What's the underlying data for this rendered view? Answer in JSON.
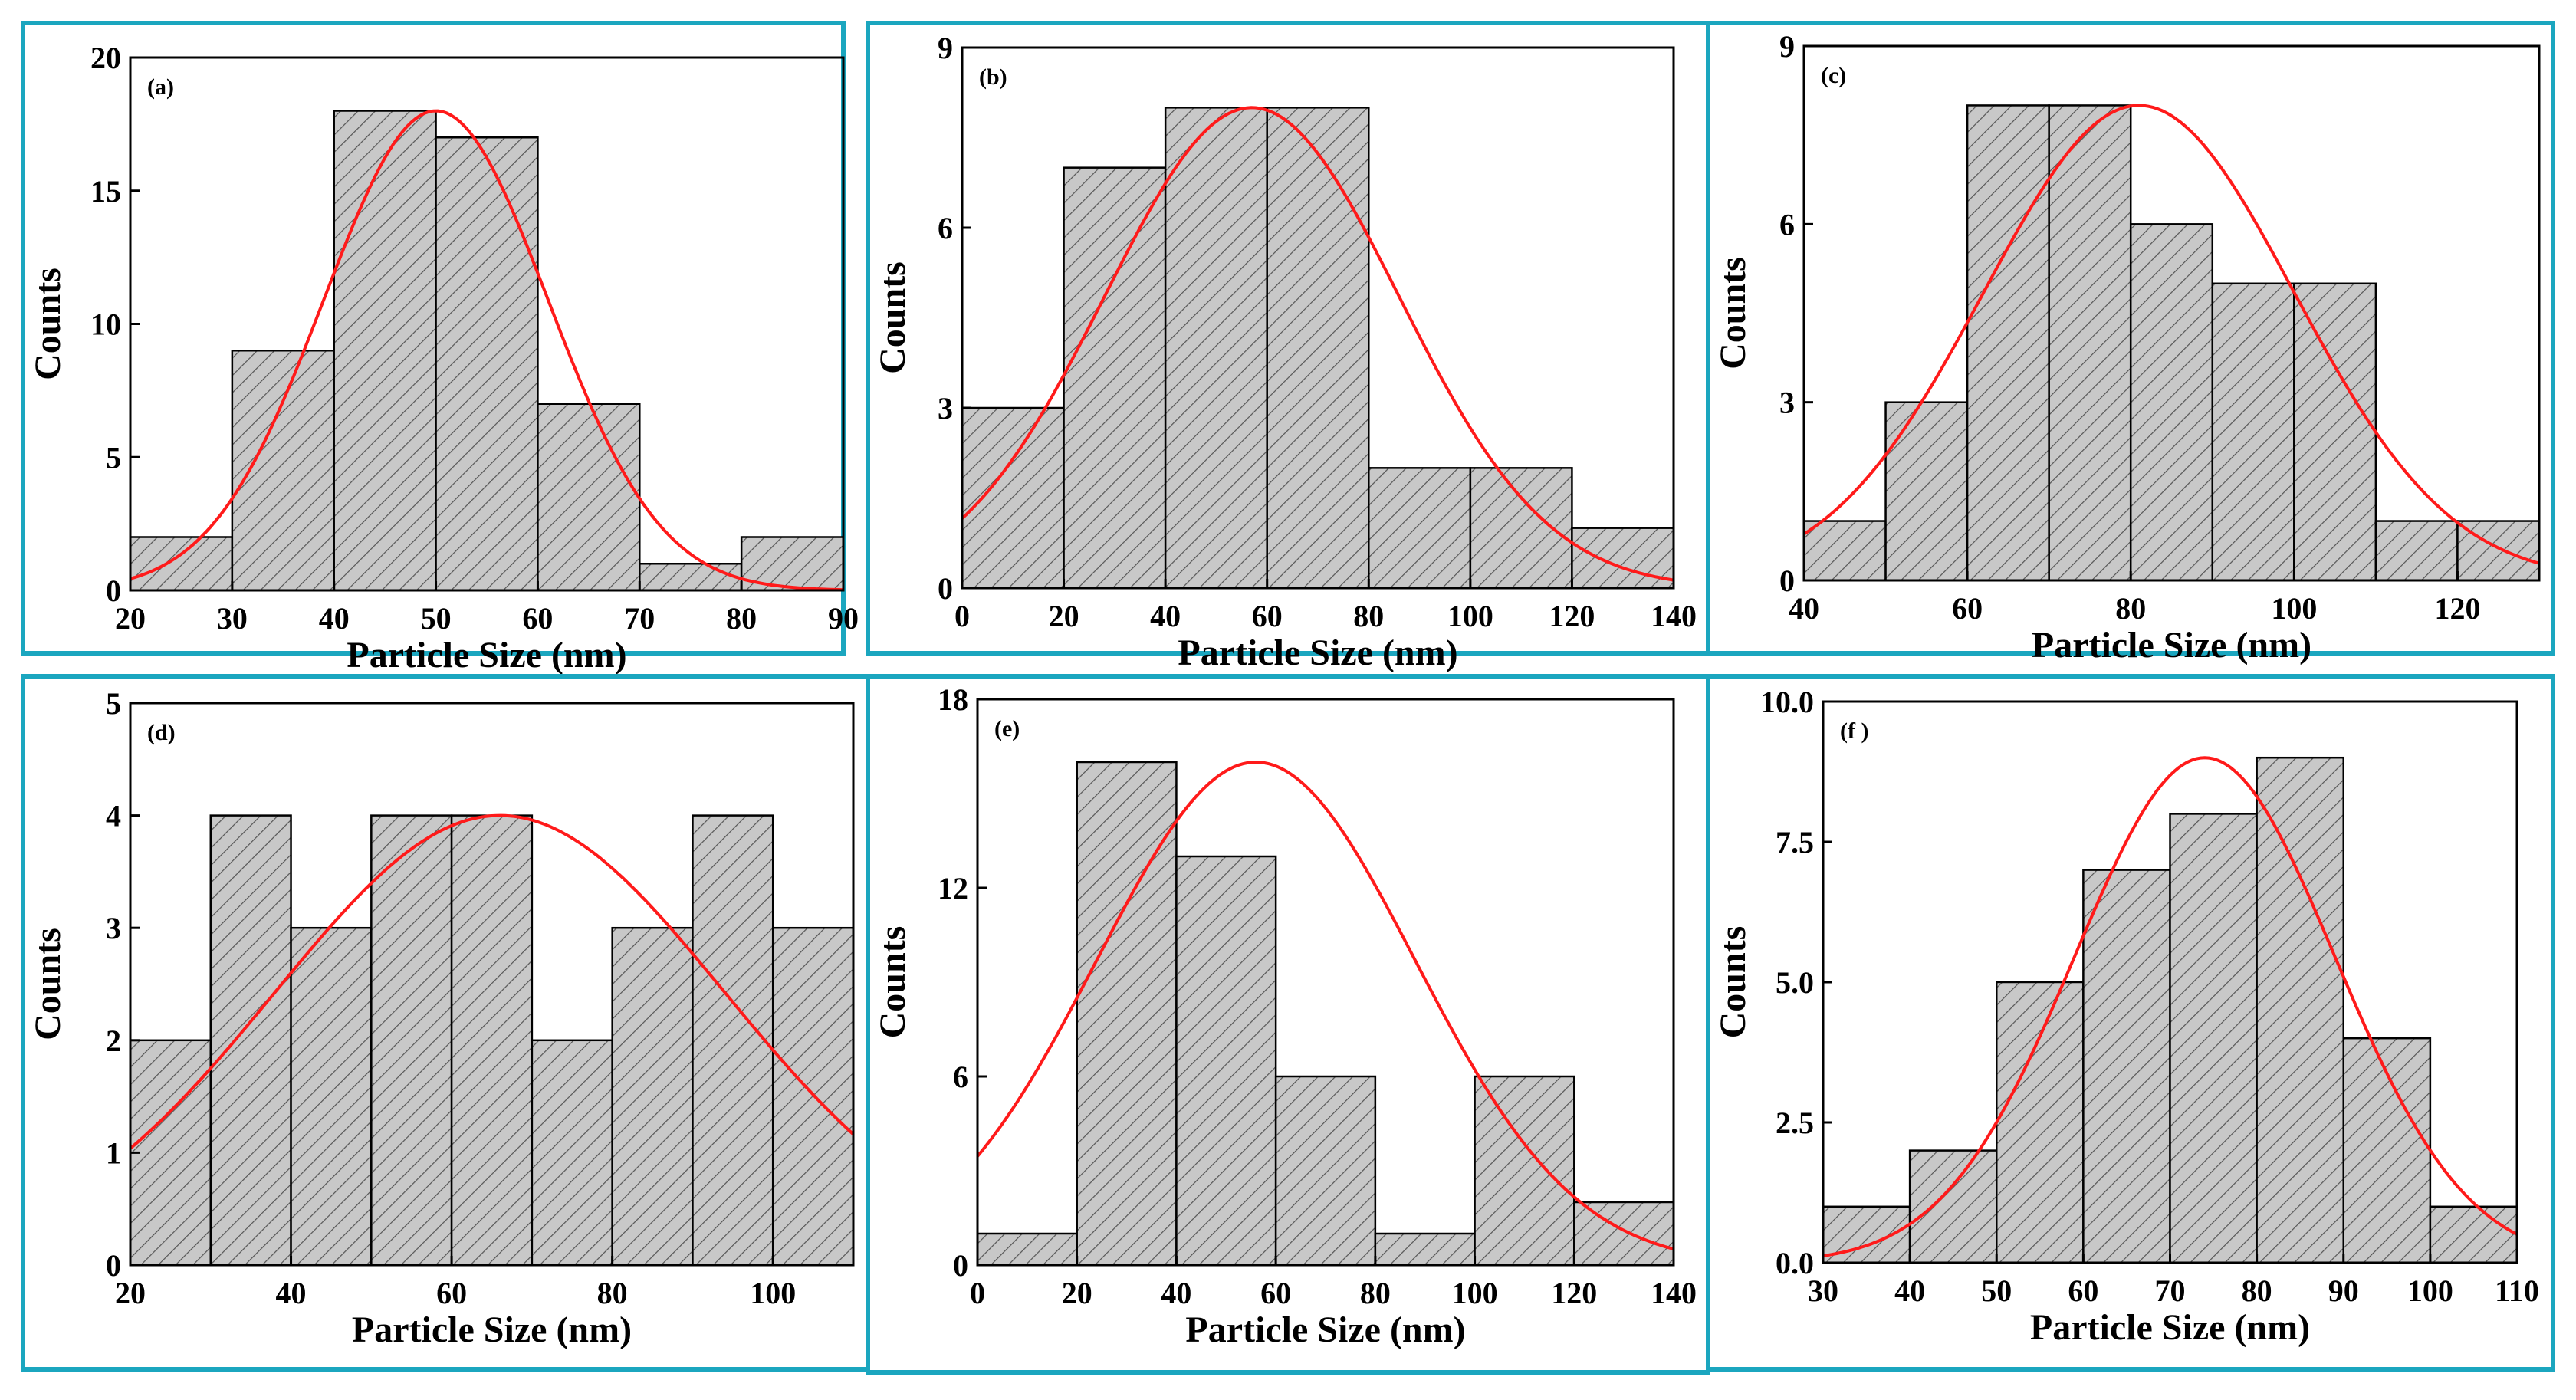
{
  "colors": {
    "panel_border": "#1ba6bf",
    "bar_fill": "#c8c8c8",
    "bar_hatch": "#555555",
    "bar_edge": "#000000",
    "fit_curve": "#ff1a1a",
    "axis": "#000000"
  },
  "chart_data": [
    {
      "type": "bar",
      "panel_label": "(a)",
      "xlabel": "Particle Size (nm)",
      "ylabel": "Counts",
      "bin_edges": [
        20,
        30,
        40,
        50,
        60,
        70,
        80,
        90
      ],
      "values": [
        2,
        9,
        18,
        17,
        7,
        1,
        2
      ],
      "xlim": [
        20,
        90
      ],
      "ylim": [
        0,
        20
      ],
      "xticks": [
        20,
        30,
        40,
        50,
        60,
        70,
        80,
        90
      ],
      "xtick_labels": [
        "20",
        "30",
        "40",
        "50",
        "60",
        "70",
        "80",
        "90"
      ],
      "yticks": [
        0,
        5,
        10,
        15,
        20
      ],
      "ytick_labels": [
        "0",
        "5",
        "10",
        "15",
        "20"
      ],
      "fit": {
        "type": "gaussian",
        "peak": 18,
        "center": 50,
        "sigma": 11
      }
    },
    {
      "type": "bar",
      "panel_label": "(b)",
      "xlabel": "Particle Size (nm)",
      "ylabel": "Counts",
      "bin_edges": [
        0,
        20,
        40,
        60,
        80,
        100,
        120,
        140
      ],
      "values": [
        3,
        7,
        8,
        8,
        2,
        2,
        1
      ],
      "xlim": [
        0,
        140
      ],
      "ylim": [
        0,
        9
      ],
      "xticks": [
        0,
        20,
        40,
        60,
        80,
        100,
        120,
        140
      ],
      "xtick_labels": [
        "0",
        "20",
        "40",
        "60",
        "80",
        "100",
        "120",
        "140"
      ],
      "yticks": [
        0,
        3,
        6,
        9
      ],
      "ytick_labels": [
        "0",
        "3",
        "6",
        "9"
      ],
      "fit": {
        "type": "gaussian",
        "peak": 8,
        "center": 57,
        "sigma": 29
      }
    },
    {
      "type": "bar",
      "panel_label": "(c)",
      "xlabel": "Particle Size (nm)",
      "ylabel": "Counts",
      "bin_edges": [
        40,
        50,
        60,
        70,
        80,
        90,
        100,
        110,
        120,
        130
      ],
      "values": [
        1,
        3,
        8,
        8,
        6,
        5,
        5,
        1,
        1
      ],
      "xlim": [
        40,
        130
      ],
      "ylim": [
        0,
        9
      ],
      "xticks": [
        40,
        60,
        80,
        100,
        120
      ],
      "xtick_labels": [
        "40",
        "60",
        "80",
        "100",
        "120"
      ],
      "yticks": [
        0,
        3,
        6,
        9
      ],
      "ytick_labels": [
        "0",
        "3",
        "6",
        "9"
      ],
      "fit": {
        "type": "gaussian",
        "peak": 8,
        "center": 81,
        "sigma": 19
      }
    },
    {
      "type": "bar",
      "panel_label": "(d)",
      "xlabel": "Particle Size (nm)",
      "ylabel": "Counts",
      "bin_edges": [
        20,
        30,
        40,
        50,
        60,
        70,
        80,
        90,
        100,
        110
      ],
      "values": [
        2,
        4,
        3,
        4,
        4,
        2,
        3,
        4,
        3
      ],
      "xlim": [
        20,
        110
      ],
      "ylim": [
        0,
        5
      ],
      "xticks": [
        20,
        40,
        60,
        80,
        100
      ],
      "xtick_labels": [
        "20",
        "40",
        "60",
        "80",
        "100"
      ],
      "yticks": [
        0,
        1,
        2,
        3,
        4,
        5
      ],
      "ytick_labels": [
        "0",
        "1",
        "2",
        "3",
        "4",
        "5"
      ],
      "fit": {
        "type": "gaussian",
        "peak": 4,
        "center": 66,
        "sigma": 28
      }
    },
    {
      "type": "bar",
      "panel_label": "(e)",
      "xlabel": "Particle Size (nm)",
      "ylabel": "Counts",
      "bin_edges": [
        0,
        20,
        40,
        60,
        80,
        100,
        120,
        140
      ],
      "values": [
        1,
        16,
        13,
        6,
        1,
        6,
        2
      ],
      "xlim": [
        0,
        140
      ],
      "ylim": [
        0,
        18
      ],
      "xticks": [
        0,
        20,
        40,
        60,
        80,
        100,
        120,
        140
      ],
      "xtick_labels": [
        "0",
        "20",
        "40",
        "60",
        "80",
        "100",
        "120",
        "140"
      ],
      "yticks": [
        0,
        6,
        12,
        18
      ],
      "ytick_labels": [
        "0",
        "6",
        "12",
        "18"
      ],
      "fit": {
        "type": "gaussian",
        "peak": 16,
        "center": 56,
        "sigma": 32
      }
    },
    {
      "type": "bar",
      "panel_label": "(f )",
      "xlabel": "Particle Size (nm)",
      "ylabel": "Counts",
      "bin_edges": [
        30,
        40,
        50,
        60,
        70,
        80,
        90,
        100,
        110
      ],
      "values": [
        1,
        2,
        5,
        7,
        8,
        9,
        4,
        1
      ],
      "xlim": [
        30,
        110
      ],
      "ylim": [
        0,
        10
      ],
      "xticks": [
        30,
        40,
        50,
        60,
        70,
        80,
        90,
        100,
        110
      ],
      "xtick_labels": [
        "30",
        "40",
        "50",
        "60",
        "70",
        "80",
        "90",
        "100",
        "110"
      ],
      "yticks": [
        0,
        2.5,
        5,
        7.5,
        10
      ],
      "ytick_labels": [
        "0.0",
        "2.5",
        "5.0",
        "7.5",
        "10.0"
      ],
      "fit": {
        "type": "gaussian",
        "peak": 9,
        "center": 74,
        "sigma": 15
      }
    }
  ]
}
